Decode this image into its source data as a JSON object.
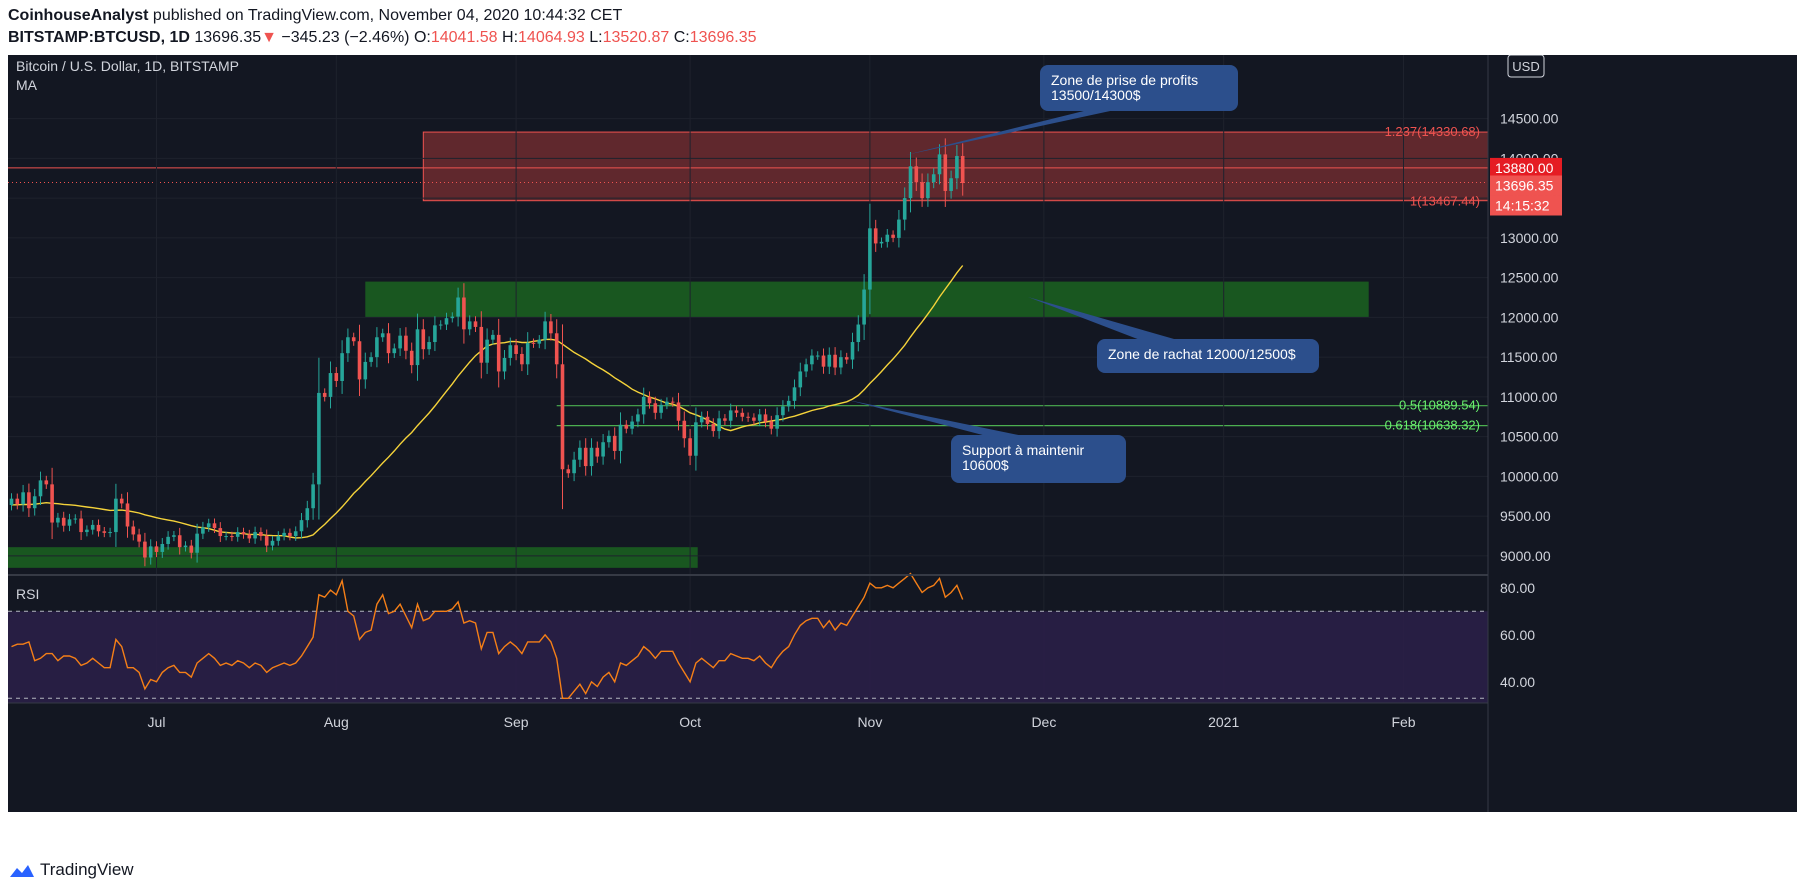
{
  "header": {
    "author": "CoinhouseAnalyst",
    "published_text": "published on TradingView.com, November 04, 2020 10:44:32 CET",
    "symbol": "BITSTAMP:BTCUSD, 1D",
    "last": "13696.35",
    "change": "−345.23 (−2.46%)",
    "o_label": "O:",
    "o_value": "14041.58",
    "h_label": "H:",
    "h_value": "14064.93",
    "l_label": "L:",
    "l_value": "13520.87",
    "c_label": "C:",
    "c_value": "13696.35"
  },
  "legend": {
    "title": "Bitcoin / U.S. Dollar, 1D, BITSTAMP",
    "indicator": "MA"
  },
  "currency_label": "USD",
  "price_tags": {
    "line": "13880.00",
    "last": "13696.35",
    "countdown": "14:15:32"
  },
  "annotations": {
    "profit_zone": [
      "Zone de prise de profits",
      "13500/14300$"
    ],
    "buy_zone": [
      "Zone de rachat 12000/12500$"
    ],
    "support": [
      "Support à maintenir",
      "10600$"
    ]
  },
  "fib_labels": {
    "f1237": "1.237(14330.68)",
    "f1": "1(13467.44)",
    "f05": "0.5(10889.54)",
    "f0618": "0.618(10638.32)"
  },
  "rsi_label": "RSI",
  "footer": {
    "brand": "TradingView"
  },
  "colors": {
    "background": "#131722",
    "up": "#26a69a",
    "down": "#ef5350",
    "ma": "#f5d33a",
    "rsi": "#f57f17",
    "profit_zone": "#6e2b2f",
    "buy_zone": "#1b5e20",
    "callout": "#2c4f8c"
  },
  "chart_data": [
    {
      "type": "candlestick",
      "title": "Bitcoin / U.S. Dollar, 1D, BITSTAMP",
      "ylim": [
        8760,
        15300
      ],
      "y_ticks": [
        9000,
        9500,
        10000,
        10500,
        11000,
        11500,
        12000,
        12500,
        13000,
        13500,
        14000,
        14500
      ],
      "y_tick_labels": [
        "9000.00",
        "9500.00",
        "10000.00",
        "10500.00",
        "11000.00",
        "11500.00",
        "12000.00",
        "12500.00",
        "13000.00",
        "13500.00",
        "14000.00",
        "14500.00"
      ],
      "x_ticks": [
        "Jul",
        "Aug",
        "Sep",
        "Oct",
        "Nov",
        "Dec",
        "2021",
        "Feb"
      ],
      "x_tick_dates": [
        "2020-07-01",
        "2020-08-01",
        "2020-09-01",
        "2020-10-01",
        "2020-11-01",
        "2020-12-01",
        "2021-01-01",
        "2021-02-01"
      ],
      "x_range": [
        "2020-06-06",
        "2021-02-15"
      ],
      "close_start": 9640,
      "close": [
        9720,
        9650,
        9800,
        9600,
        9750,
        9950,
        9900,
        9420,
        9480,
        9380,
        9460,
        9470,
        9300,
        9330,
        9390,
        9310,
        9290,
        9300,
        9720,
        9660,
        9370,
        9270,
        9180,
        8980,
        9120,
        9050,
        9150,
        9240,
        9260,
        9110,
        9130,
        9040,
        9280,
        9360,
        9410,
        9350,
        9250,
        9250,
        9240,
        9300,
        9270,
        9220,
        9300,
        9250,
        9130,
        9190,
        9250,
        9290,
        9250,
        9310,
        9450,
        9600,
        9900,
        11050,
        11000,
        11300,
        11200,
        11550,
        11750,
        11700,
        11220,
        11440,
        11500,
        11750,
        11800,
        11550,
        11610,
        11770,
        11580,
        11400,
        11850,
        11600,
        11690,
        11900,
        11910,
        11990,
        12010,
        12250,
        11850,
        11950,
        11880,
        11430,
        11720,
        11780,
        11320,
        11490,
        11650,
        11540,
        11410,
        11680,
        11670,
        11720,
        11950,
        11800,
        11410,
        10090,
        10040,
        10210,
        10360,
        10130,
        10360,
        10250,
        10430,
        10510,
        10320,
        10650,
        10600,
        10690,
        10780,
        11000,
        10920,
        10800,
        10900,
        10940,
        10930,
        10700,
        10480,
        10260,
        10680,
        10750,
        10660,
        10570,
        10730,
        10700,
        10830,
        10800,
        10750,
        10740,
        10700,
        10780,
        10690,
        10600,
        10770,
        10880,
        10950,
        11120,
        11320,
        11410,
        11520,
        11520,
        11380,
        11530,
        11370,
        11500,
        11470,
        11690,
        11910,
        12350,
        13120,
        12930,
        12950,
        13040,
        13000,
        13230,
        13500,
        13900,
        13700,
        13500,
        13700,
        13800,
        14050,
        13590,
        13750,
        14030,
        13690
      ],
      "ma_label": "MA"
    },
    {
      "type": "line",
      "title": "RSI",
      "ylim": [
        31,
        85
      ],
      "y_ticks": [
        40,
        60,
        80
      ],
      "y_tick_labels": [
        "40.00",
        "60.00",
        "80.00"
      ],
      "band": [
        30,
        70
      ],
      "values": [
        55,
        56,
        56,
        57,
        49,
        50,
        52,
        52,
        49,
        51,
        51,
        50,
        47,
        48,
        50,
        48,
        46,
        46,
        58,
        55,
        46,
        46,
        44,
        37,
        41,
        40,
        44,
        46,
        47,
        44,
        44,
        42,
        48,
        50,
        52,
        50,
        47,
        48,
        47,
        49,
        48,
        46,
        48,
        47,
        44,
        46,
        47,
        48,
        47,
        48,
        51,
        55,
        59,
        77,
        76,
        79,
        77,
        83,
        70,
        68,
        58,
        61,
        62,
        73,
        77,
        69,
        70,
        73,
        68,
        63,
        73,
        66,
        67,
        70,
        70,
        70,
        71,
        74,
        65,
        66,
        65,
        54,
        61,
        61,
        52,
        55,
        57,
        55,
        52,
        57,
        57,
        57,
        60,
        57,
        50,
        33,
        33,
        36,
        39,
        35,
        40,
        38,
        42,
        44,
        40,
        48,
        47,
        49,
        51,
        55,
        53,
        50,
        53,
        53,
        53,
        48,
        44,
        40,
        48,
        50,
        48,
        46,
        49,
        49,
        52,
        51,
        50,
        50,
        49,
        51,
        48,
        46,
        50,
        53,
        55,
        60,
        64,
        66,
        67,
        67,
        63,
        66,
        62,
        65,
        64,
        68,
        72,
        76,
        82,
        80,
        80,
        81,
        80,
        82,
        84,
        86,
        82,
        78,
        80,
        81,
        84,
        76,
        78,
        81,
        75
      ]
    }
  ],
  "zones": {
    "profit": [
      13467.44,
      14330.68
    ],
    "buy": [
      12000,
      12450
    ],
    "lower": [
      8850,
      9110
    ]
  },
  "lines": {
    "res": 13880,
    "f05": 10889.54,
    "f0618": 10638.32
  }
}
